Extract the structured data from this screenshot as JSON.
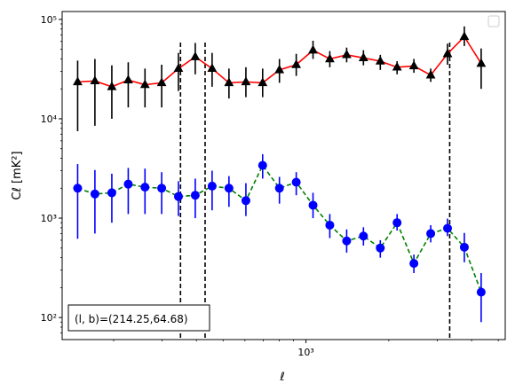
{
  "chart_data": {
    "type": "line",
    "xlabel": "ℓ",
    "ylabel": "Cℓ  [mK²]",
    "xscale": "log",
    "yscale": "log",
    "xlim": [
      130,
      5300
    ],
    "ylim": [
      60,
      120000
    ],
    "x_ticks": [
      {
        "value": 1000,
        "label": "10³"
      }
    ],
    "y_ticks": [
      {
        "value": 100,
        "label": "10²"
      },
      {
        "value": 1000,
        "label": "10³"
      },
      {
        "value": 10000,
        "label": "10⁴"
      },
      {
        "value": 100000,
        "label": "10⁵"
      }
    ],
    "legend": {
      "placement": "top-right",
      "entries": []
    },
    "vlines": [
      350,
      430,
      3330
    ],
    "annotation": "(l, b)=(214.25,64.68)",
    "series": [
      {
        "marker": "triangle",
        "line_color": "#ff0000",
        "line_style": "solid",
        "marker_color": "#000000",
        "x": [
          148,
          171,
          197,
          226,
          260,
          299,
          344,
          396,
          456,
          525,
          605,
          696,
          801,
          922,
          1061,
          1221,
          1406,
          1618,
          1863,
          2144,
          2468,
          2841,
          3270,
          3764,
          4333
        ],
        "y": [
          23500,
          24000,
          21000,
          24500,
          22000,
          23000,
          32000,
          42000,
          32000,
          23000,
          23500,
          23000,
          31000,
          35000,
          49000,
          40000,
          44000,
          41000,
          38000,
          33000,
          34000,
          27500,
          45000,
          67000,
          36000
        ],
        "err_low": [
          16000,
          15500,
          11000,
          11500,
          9000,
          10000,
          13000,
          14000,
          11000,
          7000,
          7000,
          6500,
          8000,
          8000,
          9000,
          7000,
          7000,
          6500,
          7000,
          5000,
          5000,
          4000,
          10000,
          13000,
          16000
        ],
        "err_high": [
          15000,
          16000,
          13500,
          12500,
          10000,
          12000,
          14000,
          16000,
          14000,
          9000,
          9500,
          9000,
          9000,
          10000,
          12000,
          8000,
          8000,
          8000,
          6000,
          5000,
          6000,
          4500,
          12000,
          18000,
          15000
        ]
      },
      {
        "marker": "circle",
        "line_color": "#008000",
        "line_style": "dashed",
        "marker_color": "#0000ff",
        "x": [
          148,
          171,
          197,
          226,
          260,
          299,
          344,
          396,
          456,
          525,
          605,
          696,
          801,
          922,
          1061,
          1221,
          1406,
          1618,
          1863,
          2144,
          2468,
          2841,
          3270,
          3764,
          4333
        ],
        "y": [
          2000,
          1750,
          1800,
          2200,
          2050,
          2000,
          1650,
          1700,
          2100,
          2000,
          1500,
          3400,
          2000,
          2300,
          1350,
          850,
          590,
          660,
          500,
          900,
          350,
          700,
          790,
          510,
          180
        ],
        "err_low": [
          1380,
          1050,
          900,
          1100,
          950,
          900,
          600,
          700,
          900,
          700,
          450,
          900,
          600,
          600,
          350,
          220,
          140,
          130,
          100,
          150,
          70,
          130,
          130,
          150,
          90
        ],
        "err_high": [
          1500,
          1300,
          1000,
          1000,
          1100,
          900,
          700,
          800,
          900,
          650,
          750,
          1000,
          600,
          600,
          450,
          250,
          180,
          150,
          100,
          200,
          80,
          150,
          200,
          200,
          100
        ]
      }
    ]
  }
}
